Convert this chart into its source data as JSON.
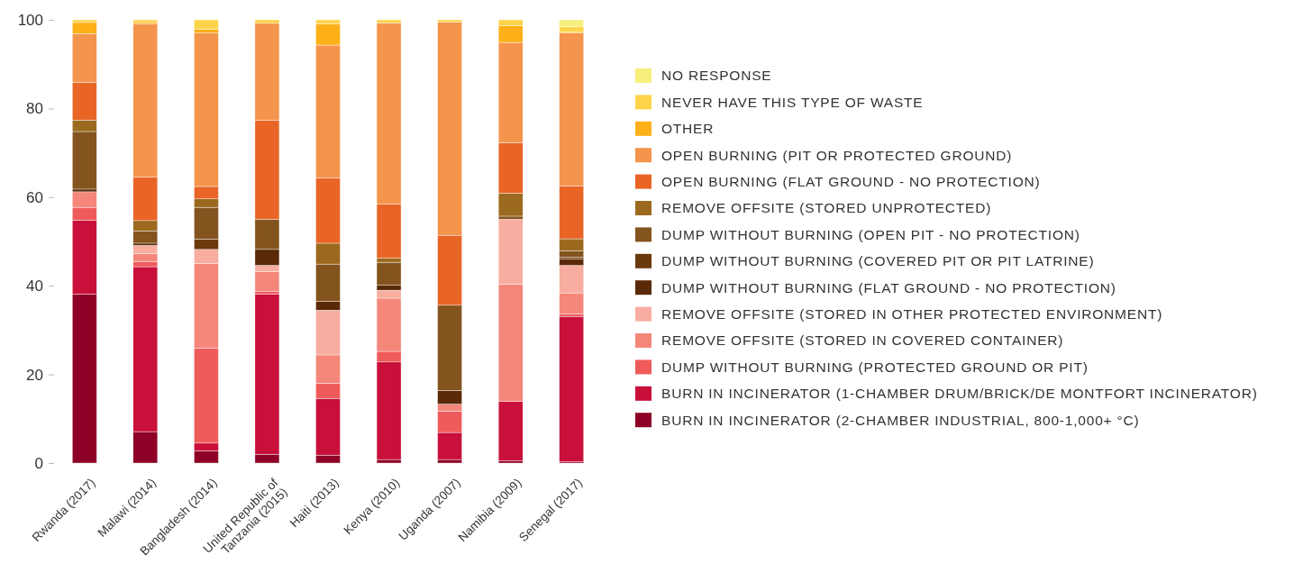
{
  "chart_data": {
    "type": "bar",
    "stacked": true,
    "categories": [
      "Rwanda (2017)",
      "Malawi (2014)",
      "Bangladesh (2014)",
      "United Republic of Tanzania (2015)",
      "Haiti (2013)",
      "Kenya (2010)",
      "Uganda (2007)",
      "Namibia (2009)",
      "Senegal (2017)"
    ],
    "ylim": [
      0,
      100
    ],
    "yticks": [
      0,
      20,
      40,
      60,
      80,
      100
    ],
    "grid": false,
    "legend": "right",
    "series": [
      {
        "name": "BURN IN INCINERATOR (2-CHAMBER INDUSTRIAL, 800-1,000+ °C)",
        "color": "#8e0026",
        "values": [
          38.1,
          7.1,
          2.8,
          2.0,
          1.8,
          0.8,
          0.8,
          0.5,
          0.3
        ]
      },
      {
        "name": "BURN IN INCINERATOR (1-CHAMBER DRUM/BRICK/DE MONTFORT INCINERATOR)",
        "color": "#c8103a",
        "values": [
          16.7,
          37.2,
          1.7,
          36.1,
          12.8,
          22.0,
          6.1,
          13.4,
          32.8
        ]
      },
      {
        "name": "DUMP WITHOUT BURNING (PROTECTED GROUND OR PIT)",
        "color": "#ef5b5b",
        "values": [
          2.9,
          1.2,
          21.4,
          0.7,
          3.4,
          2.4,
          4.8,
          0,
          0.6
        ]
      },
      {
        "name": "REMOVE OFFSITE (STORED IN COVERED CONTAINER)",
        "color": "#f4877a",
        "values": [
          3.5,
          1.7,
          19.1,
          4.4,
          6.4,
          12.0,
          1.6,
          26.5,
          4.7
        ]
      },
      {
        "name": "REMOVE OFFSITE (STORED IN OTHER PROTECTED ENVIRONMENT)",
        "color": "#f8ada0",
        "values": [
          0,
          1.9,
          3.2,
          1.4,
          10.1,
          1.8,
          0,
          14.6,
          6.2
        ]
      },
      {
        "name": "DUMP WITHOUT BURNING (FLAT GROUND - NO PROTECTION)",
        "color": "#5a2a08",
        "values": [
          0.6,
          0.5,
          0,
          3.6,
          2.0,
          1.1,
          3.1,
          0,
          1.4
        ]
      },
      {
        "name": "DUMP WITHOUT BURNING (COVERED PIT OR PIT LATRINE)",
        "color": "#6b3a0c",
        "values": [
          0,
          0,
          2.3,
          0,
          0,
          0,
          0,
          0,
          0.5
        ]
      },
      {
        "name": "DUMP WITHOUT BURNING (OPEN PIT - NO PROTECTION)",
        "color": "#84541e",
        "values": [
          13.0,
          2.8,
          7.2,
          6.8,
          8.4,
          5.2,
          19.2,
          0.7,
          1.4
        ]
      },
      {
        "name": "REMOVE OFFSITE (STORED UNPROTECTED)",
        "color": "#9b6a1f",
        "values": [
          2.6,
          2.3,
          1.9,
          0,
          4.7,
          0.9,
          0,
          5.2,
          2.7
        ]
      },
      {
        "name": "OPEN BURNING (FLAT GROUND - NO PROTECTION)",
        "color": "#e86526",
        "values": [
          8.5,
          9.8,
          2.8,
          22.4,
          14.7,
          12.3,
          15.8,
          11.4,
          11.9
        ]
      },
      {
        "name": "OPEN BURNING (PIT OR PROTECTED GROUND)",
        "color": "#f5944c",
        "values": [
          11.0,
          34.6,
          34.6,
          21.8,
          30.0,
          40.8,
          48.1,
          22.6,
          34.5
        ]
      },
      {
        "name": "OTHER",
        "color": "#fdb018",
        "values": [
          2.5,
          0.4,
          0.9,
          0,
          4.8,
          0,
          0,
          3.8,
          0.2
        ]
      },
      {
        "name": "NEVER HAVE THIS TYPE OF WASTE",
        "color": "#fdd349",
        "values": [
          0.6,
          0.5,
          2.1,
          0.8,
          0.9,
          0.7,
          0.5,
          1.3,
          1.2
        ]
      },
      {
        "name": "NO RESPONSE",
        "color": "#f7ef7b",
        "values": [
          0,
          0,
          0,
          0,
          0,
          0,
          0,
          0,
          1.6
        ]
      }
    ]
  }
}
